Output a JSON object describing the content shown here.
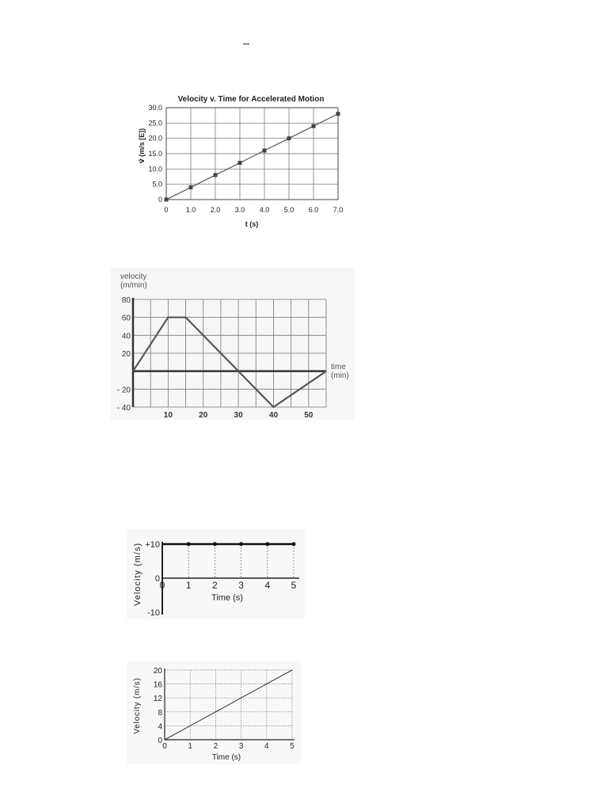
{
  "chart_data": [
    {
      "type": "line",
      "title": "Velocity v. Time for Accelerated Motion",
      "xlabel": "t (s)",
      "ylabel": "v⃗ (m/s [E])",
      "xlim": [
        0,
        7
      ],
      "ylim": [
        0,
        30
      ],
      "xticks": [
        "0",
        "1.0",
        "2.0",
        "3.0",
        "4.0",
        "5.0",
        "6.0",
        "7.0"
      ],
      "yticks": [
        "0",
        "5.0",
        "10.0",
        "15.0",
        "20.0",
        "25.0",
        "30.0"
      ],
      "grid": true,
      "series": [
        {
          "x": [
            0,
            1,
            2,
            3,
            4,
            5,
            6,
            7
          ],
          "y": [
            0,
            4,
            8,
            12,
            16,
            20,
            24,
            28
          ]
        }
      ]
    },
    {
      "type": "line",
      "ylabel": "velocity (m/min)",
      "xlabel": "time (min)",
      "xlim": [
        0,
        55
      ],
      "ylim": [
        -40,
        80
      ],
      "xticks": [
        "10",
        "20",
        "30",
        "40",
        "50"
      ],
      "yticks": [
        "80",
        "60",
        "40",
        "20",
        "- 20",
        "- 40"
      ],
      "grid": true,
      "series": [
        {
          "x": [
            0,
            10,
            15,
            30,
            40,
            55
          ],
          "y": [
            0,
            60,
            60,
            0,
            -40,
            0
          ]
        }
      ]
    },
    {
      "type": "line",
      "xlabel": "Time (s)",
      "ylabel": "Velocity (m/s)",
      "xlim": [
        0,
        5
      ],
      "ylim": [
        -10,
        10
      ],
      "xticks": [
        "0",
        "1",
        "2",
        "3",
        "4",
        "5"
      ],
      "yticks": [
        "+10",
        "0",
        "-10"
      ],
      "grid": false,
      "series": [
        {
          "x": [
            0,
            1,
            2,
            3,
            4,
            5
          ],
          "y": [
            10,
            10,
            10,
            10,
            10,
            10
          ]
        }
      ]
    },
    {
      "type": "line",
      "xlabel": "Time (s)",
      "ylabel": "Velocity (m/s)",
      "xlim": [
        0,
        5
      ],
      "ylim": [
        0,
        20
      ],
      "xticks": [
        "0",
        "1",
        "2",
        "3",
        "4",
        "5"
      ],
      "yticks": [
        "0",
        "4",
        "8",
        "12",
        "16",
        "20"
      ],
      "grid": true,
      "series": [
        {
          "x": [
            0,
            1,
            2,
            3,
            4,
            5
          ],
          "y": [
            0,
            4,
            8,
            12,
            16,
            20
          ]
        }
      ]
    }
  ]
}
